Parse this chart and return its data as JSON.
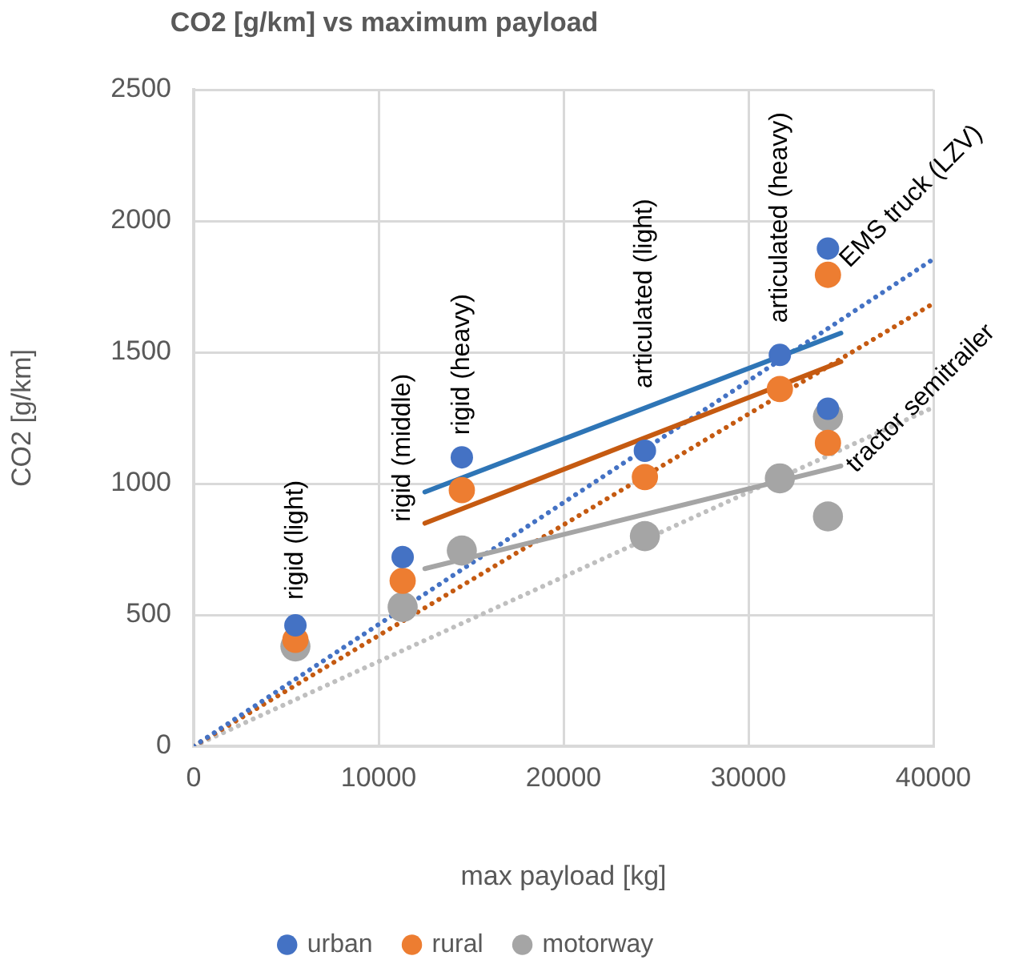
{
  "chart_data": {
    "type": "scatter",
    "title": "CO2 [g/km] vs maximum payload",
    "xlabel": "max payload [kg]",
    "ylabel": "CO2 [g/km]",
    "xlim": [
      0,
      40000
    ],
    "xticks": [
      0,
      10000,
      20000,
      30000,
      40000
    ],
    "ylim": [
      0,
      2500
    ],
    "yticks": [
      0,
      500,
      1000,
      1500,
      2000,
      2500
    ],
    "grid": true,
    "legend": "bottom",
    "marker": "circle",
    "series": [
      {
        "name": "urban",
        "color": "#4472c4",
        "x": [
          5500,
          11300,
          14500,
          24400,
          31700,
          34300,
          34300
        ],
        "values": [
          460,
          720,
          1100,
          1125,
          1490,
          1895,
          1285
        ]
      },
      {
        "name": "rural",
        "color": "#ed7d31",
        "x": [
          5500,
          11300,
          14500,
          24400,
          31700,
          34300,
          34300
        ],
        "values": [
          405,
          630,
          975,
          1025,
          1360,
          1795,
          1155
        ]
      },
      {
        "name": "motorway",
        "color": "#a5a5a5",
        "x": [
          5500,
          11300,
          14500,
          24400,
          31700,
          34300,
          34300
        ],
        "values": [
          380,
          530,
          745,
          800,
          1020,
          1255,
          875
        ]
      },
      {
        "type": "line",
        "color": "#2e75b6",
        "marker": "none",
        "line_style": "solid",
        "x": [
          12500,
          35000
        ],
        "values": [
          968,
          1573
        ]
      },
      {
        "type": "line",
        "color": "#c55a11",
        "marker": "none",
        "line_style": "solid",
        "x": [
          12500,
          35000
        ],
        "values": [
          849,
          1464
        ]
      },
      {
        "type": "line",
        "color": "#a5a5a5",
        "marker": "none",
        "line_style": "solid",
        "x": [
          12500,
          35000
        ],
        "values": [
          676,
          1067
        ]
      },
      {
        "type": "line",
        "color": "#4472c4",
        "marker": "none",
        "line_style": "dotted",
        "x": [
          0,
          40000
        ],
        "values": [
          0,
          1855
        ]
      },
      {
        "type": "line",
        "color": "#c55a11",
        "marker": "none",
        "line_style": "dotted",
        "x": [
          0,
          40000
        ],
        "values": [
          0,
          1686
        ]
      },
      {
        "type": "line",
        "color": "#bfbfbf",
        "marker": "none",
        "line_style": "dotted",
        "x": [
          0,
          40000
        ],
        "values": [
          0,
          1290
        ]
      }
    ],
    "annotations": [
      "rigid (light)",
      "rigid (middle)",
      "rigid (heavy)",
      "articulated (light)",
      "articulated (heavy)",
      "EMS truck (LZV)",
      "tractor semitrailer"
    ]
  }
}
